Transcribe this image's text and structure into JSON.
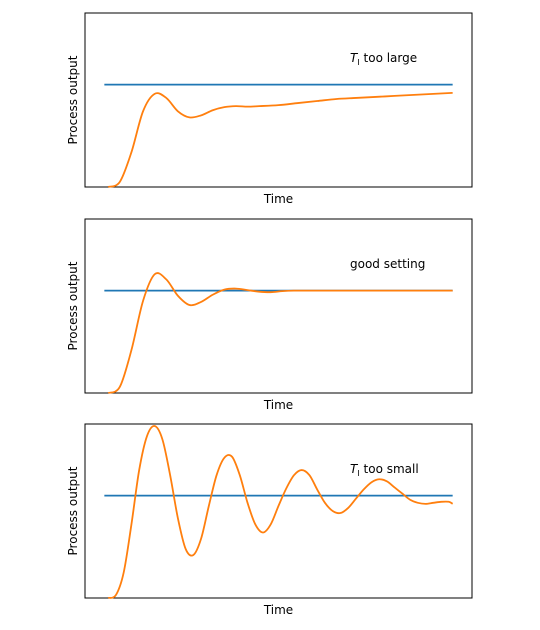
{
  "chart_data": [
    {
      "type": "line",
      "xlabel": "Time",
      "ylabel": "Process output",
      "annotation": {
        "var": "T",
        "sub": "I",
        "rest": " too large"
      },
      "xlim": [
        0,
        20
      ],
      "ylim": [
        0,
        1.7
      ],
      "grid": false,
      "setpoint": {
        "color": "#1f77b4",
        "x": [
          1,
          19
        ],
        "y": [
          1,
          1
        ]
      },
      "response": {
        "color": "#ff7f0e",
        "x": [
          1.2,
          19
        ],
        "y": [
          0,
          0.94
        ],
        "x_points": [
          1.2,
          1.8,
          2.4,
          3.0,
          3.6,
          4.2,
          4.8,
          5.4,
          6.0,
          6.6,
          7.2,
          7.8,
          8.4,
          9.0,
          10,
          11,
          12,
          13,
          14,
          15,
          16,
          17,
          18,
          19
        ],
        "y_points": [
          0,
          0.05,
          0.34,
          0.74,
          0.91,
          0.87,
          0.74,
          0.68,
          0.7,
          0.75,
          0.78,
          0.79,
          0.785,
          0.79,
          0.8,
          0.82,
          0.84,
          0.86,
          0.87,
          0.88,
          0.89,
          0.9,
          0.91,
          0.92
        ]
      }
    },
    {
      "type": "line",
      "xlabel": "Time",
      "ylabel": "Process output",
      "annotation": {
        "var": "",
        "sub": "",
        "rest": "good setting"
      },
      "xlim": [
        0,
        20
      ],
      "ylim": [
        0,
        1.7
      ],
      "grid": false,
      "setpoint": {
        "color": "#1f77b4",
        "x": [
          1,
          19
        ],
        "y": [
          1,
          1
        ]
      },
      "response": {
        "color": "#ff7f0e",
        "x": [
          1.2,
          19
        ],
        "y": [
          0,
          1.0
        ],
        "x_points": [
          1.2,
          1.8,
          2.4,
          3.0,
          3.6,
          4.2,
          4.8,
          5.4,
          6.0,
          6.6,
          7.2,
          7.8,
          8.4,
          9.0,
          9.6,
          10.2,
          10.8,
          11.4,
          12,
          13,
          14,
          15,
          16,
          17,
          18,
          19
        ],
        "y_points": [
          0,
          0.06,
          0.42,
          0.9,
          1.16,
          1.11,
          0.95,
          0.86,
          0.89,
          0.96,
          1.01,
          1.02,
          1.005,
          0.99,
          0.985,
          0.995,
          1.0,
          1.0,
          1.0,
          1.0,
          1.0,
          1.0,
          1.0,
          1.0,
          1.0,
          1.0
        ]
      }
    },
    {
      "type": "line",
      "xlabel": "Time",
      "ylabel": "Process output",
      "annotation": {
        "var": "T",
        "sub": "I",
        "rest": " too small"
      },
      "xlim": [
        0,
        20
      ],
      "ylim": [
        0,
        1.7
      ],
      "grid": false,
      "setpoint": {
        "color": "#1f77b4",
        "x": [
          1,
          19
        ],
        "y": [
          1,
          1
        ]
      },
      "response": {
        "color": "#ff7f0e",
        "x": [
          1.2,
          19
        ],
        "y": [
          0,
          0.92
        ],
        "x_points": [
          1.2,
          1.6,
          2.0,
          2.4,
          2.8,
          3.2,
          3.6,
          4.0,
          4.4,
          4.8,
          5.2,
          5.6,
          6.0,
          6.4,
          6.8,
          7.2,
          7.6,
          8.0,
          8.4,
          8.8,
          9.2,
          9.6,
          10.0,
          10.4,
          10.8,
          11.2,
          11.6,
          12.0,
          12.4,
          12.8,
          13.2,
          13.6,
          14.0,
          14.4,
          14.8,
          15.2,
          15.6,
          16.0,
          16.4,
          16.8,
          17.2,
          17.6,
          18.0,
          18.4,
          18.8,
          19.0
        ],
        "y_points": [
          0,
          0.03,
          0.25,
          0.72,
          1.25,
          1.58,
          1.68,
          1.55,
          1.2,
          0.78,
          0.48,
          0.42,
          0.58,
          0.9,
          1.2,
          1.37,
          1.38,
          1.2,
          0.93,
          0.72,
          0.64,
          0.72,
          0.9,
          1.07,
          1.2,
          1.25,
          1.2,
          1.06,
          0.93,
          0.85,
          0.83,
          0.88,
          0.97,
          1.06,
          1.13,
          1.16,
          1.14,
          1.08,
          1.02,
          0.96,
          0.93,
          0.92,
          0.93,
          0.94,
          0.94,
          0.92
        ]
      }
    }
  ]
}
